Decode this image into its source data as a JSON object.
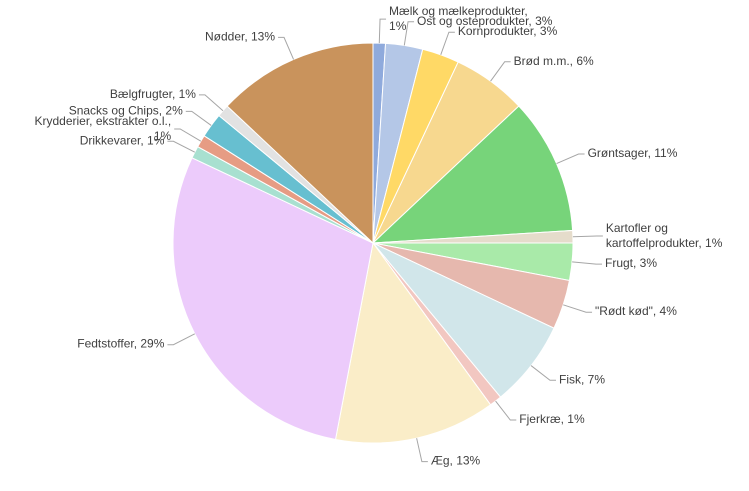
{
  "chart_data": {
    "type": "pie",
    "values": [
      1,
      3,
      3,
      6,
      11,
      1,
      3,
      4,
      7,
      1,
      13,
      29,
      1,
      1,
      2,
      1,
      13
    ],
    "value_labels": [
      "Mælk og mælkeprodukter,\n1%",
      "Ost og osteprodukter, 3%",
      "Kornprodukter, 3%",
      "Brød m.m., 6%",
      "Grøntsager, 11%",
      "Kartofler og\nkartoffelprodukter, 1%",
      "Frugt, 3%",
      "\"Rødt kød\", 4%",
      "Fisk, 7%",
      "Fjerkræ, 1%",
      "Æg, 13%",
      "Fedtstoffer, 29%",
      "Drikkevarer, 1%",
      "Krydderier, ekstrakter o.l.,\n1%",
      "Snacks og Chips, 2%",
      "Bælgfrugter, 1%",
      "Nødder, 13%"
    ],
    "colors": [
      "#8faadc",
      "#b4c7e7",
      "#ffd966",
      "#f7d88f",
      "#77d47a",
      "#e5dccb",
      "#a9eaa9",
      "#e6b8ae",
      "#d1e6ea",
      "#f2c7c1",
      "#faedc8",
      "#eccbfb",
      "#a8e0d0",
      "#e69c84",
      "#67bfd0",
      "#e2e2e2",
      "#c9935c"
    ]
  }
}
